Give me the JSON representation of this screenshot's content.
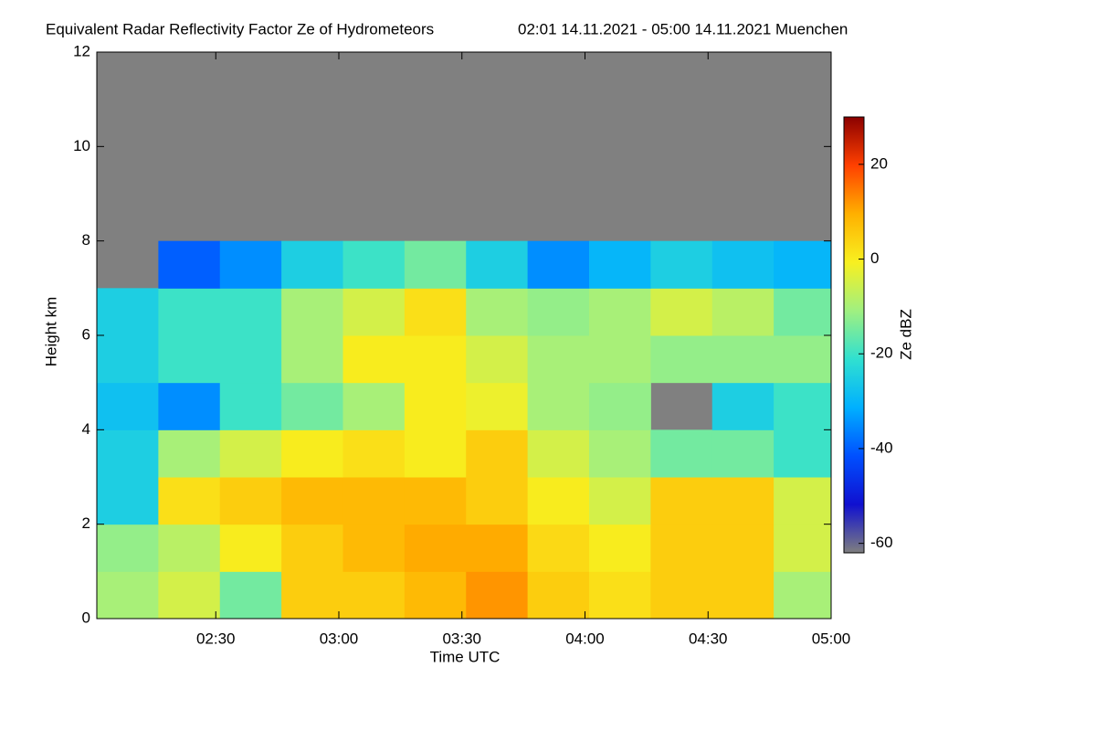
{
  "chart_data": {
    "type": "heatmap",
    "title": "Equivalent Radar Reflectivity Factor Ze of Hydrometeors",
    "subtitle": "02:01 14.11.2021 - 05:00 14.11.2021 Muenchen",
    "xlabel": "Time UTC",
    "ylabel": "Height km",
    "colorbar_label": "Ze dBZ",
    "xlim": [
      "02:01",
      "05:00"
    ],
    "xticks": [
      "02:30",
      "03:00",
      "03:30",
      "04:00",
      "04:30",
      "05:00"
    ],
    "ylim": [
      0,
      12
    ],
    "yticks": [
      0,
      2,
      4,
      6,
      8,
      10,
      12
    ],
    "clim": [
      -62,
      30
    ],
    "cticks": [
      -60,
      -40,
      -20,
      0,
      20
    ],
    "background": "#808080",
    "colormap": [
      "#7f7f7f",
      "#1010d0",
      "#0050ff",
      "#00b0ff",
      "#30e0d0",
      "#a0f080",
      "#f8f020",
      "#ffb000",
      "#ff4000",
      "#8b0000"
    ],
    "x": [
      "02:01",
      "02:16",
      "02:31",
      "02:46",
      "03:01",
      "03:16",
      "03:31",
      "03:46",
      "04:01",
      "04:16",
      "04:31",
      "04:46"
    ],
    "y": [
      0,
      1,
      2,
      3,
      4,
      5,
      6,
      7,
      8,
      9,
      10,
      11
    ],
    "z": [
      [
        -10,
        -5,
        -15,
        5,
        5,
        8,
        12,
        5,
        2,
        5,
        5,
        -10
      ],
      [
        -12,
        -8,
        0,
        5,
        8,
        10,
        10,
        3,
        0,
        5,
        5,
        -5
      ],
      [
        -25,
        2,
        5,
        8,
        8,
        8,
        5,
        0,
        -5,
        5,
        5,
        -5
      ],
      [
        -25,
        -10,
        -5,
        0,
        2,
        0,
        5,
        -5,
        -10,
        -15,
        -15,
        -20
      ],
      [
        -28,
        -35,
        -20,
        -15,
        -10,
        0,
        -2,
        -10,
        -12,
        null,
        -25,
        -20
      ],
      [
        -25,
        -20,
        -20,
        -10,
        0,
        0,
        -5,
        -10,
        -10,
        -12,
        -12,
        -12
      ],
      [
        -25,
        -20,
        -20,
        -10,
        -5,
        2,
        -10,
        -12,
        -10,
        -5,
        -8,
        -15
      ],
      [
        null,
        -40,
        -35,
        -25,
        -20,
        -15,
        -25,
        -35,
        -30,
        -25,
        -28,
        -30
      ],
      [
        null,
        null,
        null,
        null,
        null,
        null,
        null,
        null,
        null,
        null,
        null,
        null
      ],
      [
        null,
        null,
        null,
        null,
        null,
        null,
        null,
        null,
        null,
        null,
        null,
        null
      ],
      [
        null,
        null,
        null,
        null,
        null,
        null,
        null,
        null,
        null,
        null,
        null,
        null
      ],
      [
        null,
        null,
        null,
        null,
        null,
        null,
        null,
        null,
        null,
        null,
        null,
        null
      ]
    ]
  }
}
